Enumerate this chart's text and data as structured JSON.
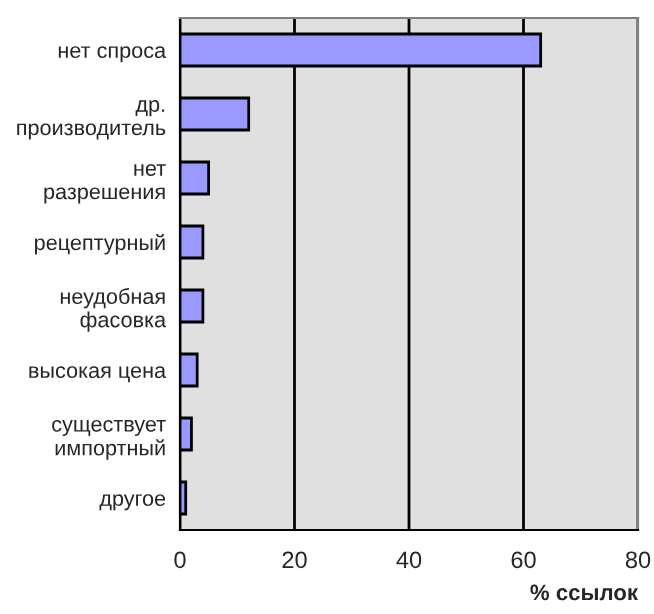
{
  "chart_data": {
    "type": "bar",
    "orientation": "horizontal",
    "xlabel": "% ссылок",
    "categories": [
      "нет спроса",
      "др.\nпроизводитель",
      "нет\nразрешения",
      "рецептурный",
      "неудобная\nфасовка",
      "высокая цена",
      "существует\nимпортный",
      "другое"
    ],
    "values": [
      63,
      12,
      5,
      4,
      4,
      3,
      2,
      1
    ],
    "color": "#9999ff",
    "xlim": [
      0,
      80
    ],
    "xticks": [
      0,
      20,
      40,
      60,
      80
    ],
    "grid": "x",
    "legend": false
  }
}
